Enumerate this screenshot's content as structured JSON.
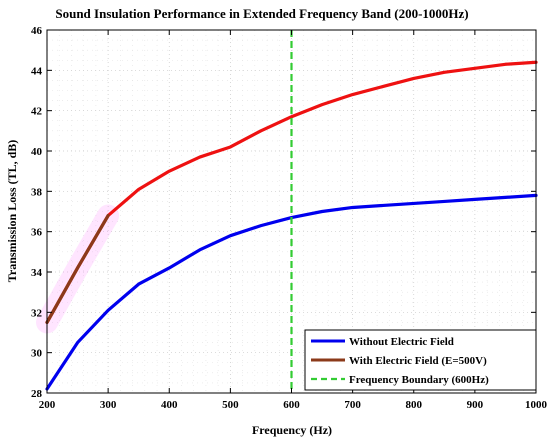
{
  "chart_data": {
    "type": "line",
    "title": "Sound Insulation Performance in Extended Frequency Band (200-1000Hz)",
    "xlabel": "Frequency (Hz)",
    "ylabel": "Transmission Loss (TL, dB)",
    "xlim": [
      200,
      1000
    ],
    "ylim": [
      28,
      46
    ],
    "xticks": [
      200,
      300,
      400,
      500,
      600,
      700,
      800,
      900,
      1000
    ],
    "yticks": [
      28,
      30,
      32,
      34,
      36,
      38,
      40,
      42,
      44,
      46
    ],
    "grid": true,
    "legend_position": "bottom-right",
    "series": [
      {
        "name": "Without Electric Field",
        "color": "#0000ee",
        "x": [
          200,
          250,
          300,
          350,
          400,
          450,
          500,
          550,
          600,
          650,
          700,
          750,
          800,
          850,
          900,
          950,
          1000
        ],
        "y": [
          28.2,
          30.5,
          32.1,
          33.4,
          34.2,
          35.1,
          35.8,
          36.3,
          36.7,
          37.0,
          37.2,
          37.3,
          37.4,
          37.5,
          37.6,
          37.7,
          37.8
        ]
      },
      {
        "name": "With Electric Field (E=500V)",
        "color": "#ee1111",
        "low_band_color": "#8b3a1a",
        "low_band_limit": 300,
        "x": [
          200,
          250,
          300,
          350,
          400,
          450,
          500,
          550,
          600,
          650,
          700,
          750,
          800,
          850,
          900,
          950,
          1000
        ],
        "y": [
          31.5,
          34.2,
          36.8,
          38.1,
          39.0,
          39.7,
          40.2,
          41.0,
          41.7,
          42.3,
          42.8,
          43.2,
          43.6,
          43.9,
          44.1,
          44.3,
          44.4
        ]
      }
    ],
    "boundary": {
      "name": "Frequency Boundary (600Hz)",
      "x": 600,
      "color": "#33cc33"
    },
    "highlight": {
      "x_range": [
        200,
        300
      ],
      "color": "#ff88ff"
    }
  }
}
